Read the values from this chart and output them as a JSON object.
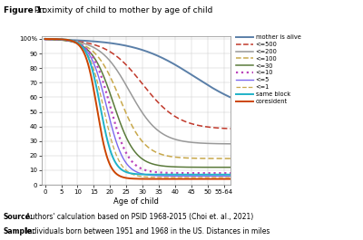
{
  "title_bold": "Figure 1:",
  "title_rest": " Proximity of child to mother by age of child",
  "xlabel": "Age of child",
  "x_ticks": [
    0,
    5,
    10,
    15,
    20,
    25,
    30,
    35,
    40,
    45,
    50,
    55
  ],
  "x_tick_labels": [
    "0",
    "5",
    "10",
    "15",
    "20",
    "25",
    "30",
    "35",
    "40",
    "45",
    "50",
    "55-64"
  ],
  "y_ticks": [
    0,
    10,
    20,
    30,
    40,
    50,
    60,
    70,
    80,
    90,
    100
  ],
  "y_tick_labels": [
    "0",
    "10",
    "20",
    "30",
    "40",
    "50",
    "60",
    "70",
    "80",
    "90",
    "100%"
  ],
  "ylim": [
    0,
    102
  ],
  "xlim": [
    -1,
    57
  ],
  "source_bold": "Source:",
  "source_rest": " Authors' calculation based on PSID 1968-2015 (Choi et. al., 2021)",
  "sample_bold": "Sample:",
  "sample_rest": " Individuals born between 1951 and 1968 in the US. Distances in miles",
  "series": [
    {
      "label": "mother is alive",
      "color": "#5a7fa8",
      "linestyle": "solid",
      "linewidth": 1.4,
      "end_y": 48,
      "inflection": 46,
      "steepness": 0.11
    },
    {
      "label": "<=500",
      "color": "#c1392b",
      "linestyle": "dashed",
      "linewidth": 1.1,
      "end_y": 38,
      "inflection": 30,
      "steepness": 0.18
    },
    {
      "label": "<=200",
      "color": "#999999",
      "linestyle": "solid",
      "linewidth": 1.1,
      "end_y": 28,
      "inflection": 26,
      "steepness": 0.22
    },
    {
      "label": "<=100",
      "color": "#c8a84b",
      "linestyle": "dashed",
      "linewidth": 1.1,
      "end_y": 18,
      "inflection": 23,
      "steepness": 0.26
    },
    {
      "label": "<=30",
      "color": "#5a7a3a",
      "linestyle": "solid",
      "linewidth": 1.1,
      "end_y": 12,
      "inflection": 21,
      "steepness": 0.3
    },
    {
      "label": "<=10",
      "color": "#bb44bb",
      "linestyle": "dotted",
      "linewidth": 1.6,
      "end_y": 8,
      "inflection": 20,
      "steepness": 0.35
    },
    {
      "label": "<=5",
      "color": "#7b68ee",
      "linestyle": "solid",
      "linewidth": 1.0,
      "end_y": 6,
      "inflection": 19,
      "steepness": 0.38
    },
    {
      "label": "<=1",
      "color": "#c8a84b",
      "linestyle": "dashed",
      "linewidth": 0.9,
      "end_y": 5,
      "inflection": 18,
      "steepness": 0.42
    },
    {
      "label": "same block",
      "color": "#20b2c8",
      "linestyle": "solid",
      "linewidth": 1.4,
      "end_y": 7,
      "inflection": 17,
      "steepness": 0.5
    },
    {
      "label": "coresident",
      "color": "#cc4400",
      "linestyle": "solid",
      "linewidth": 1.4,
      "end_y": 4,
      "inflection": 16,
      "steepness": 0.55
    }
  ]
}
